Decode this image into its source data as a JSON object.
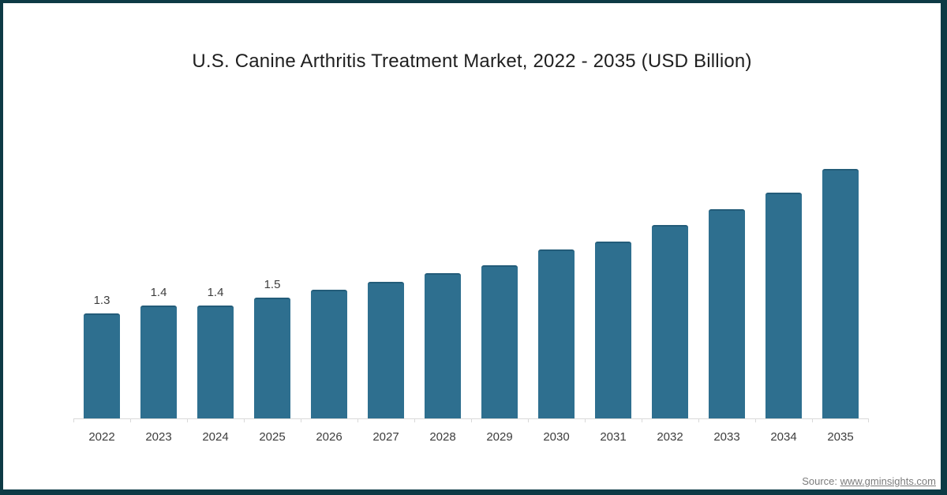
{
  "frame": {
    "background": "#ffffff",
    "border_color": "#0d3a45"
  },
  "title": "U.S. Canine Arthritis Treatment Market, 2022 - 2035 (USD Billion)",
  "source": {
    "label": "Source:",
    "url": "www.gminsights.com"
  },
  "chart_data": {
    "type": "bar",
    "title": "U.S. Canine Arthritis Treatment Market, 2022 - 2035 (USD Billion)",
    "categories": [
      "2022",
      "2023",
      "2024",
      "2025",
      "2026",
      "2027",
      "2028",
      "2029",
      "2030",
      "2031",
      "2032",
      "2033",
      "2034",
      "2035"
    ],
    "values": [
      1.3,
      1.4,
      1.4,
      1.5,
      1.6,
      1.7,
      1.8,
      1.9,
      2.1,
      2.2,
      2.4,
      2.6,
      2.8,
      3.1
    ],
    "data_labels": [
      "1.3",
      "1.4",
      "1.4",
      "1.5",
      "",
      "",
      "",
      "",
      "",
      "",
      "",
      "",
      "",
      ""
    ],
    "xlabel": "",
    "ylabel": "",
    "ylim": [
      0,
      3.5
    ],
    "grid": false,
    "legend_position": "none",
    "bar_color": "#2e6f8f",
    "bar_top_edge_color": "#235c79",
    "axis_color": "#d9d9d9",
    "label_color": "#3d3d3d"
  }
}
